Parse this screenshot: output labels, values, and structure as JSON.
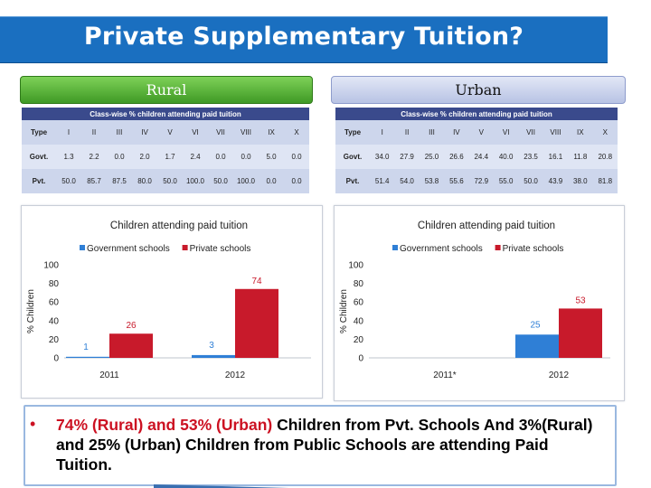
{
  "title": "Private Supplementary Tuition?",
  "colors": {
    "gov": "#2f7fd6",
    "pvt": "#c81a2b",
    "title_bg": "#1a6fc0"
  },
  "rural": {
    "label": "Rural",
    "table": {
      "title": "Class-wise % children attending paid tuition",
      "header": [
        "Type",
        "I",
        "II",
        "III",
        "IV",
        "V",
        "VI",
        "VII",
        "VIII",
        "IX",
        "X"
      ],
      "rows": [
        [
          "Govt.",
          "1.3",
          "2.2",
          "0.0",
          "2.0",
          "1.7",
          "2.4",
          "0.0",
          "0.0",
          "5.0",
          "0.0"
        ],
        [
          "Pvt.",
          "50.0",
          "85.7",
          "87.5",
          "80.0",
          "50.0",
          "100.0",
          "50.0",
          "100.0",
          "0.0",
          "0.0"
        ]
      ]
    }
  },
  "urban": {
    "label": "Urban",
    "table": {
      "title": "Class-wise % children attending paid tuition",
      "header": [
        "Type",
        "I",
        "II",
        "III",
        "IV",
        "V",
        "VI",
        "VII",
        "VIII",
        "IX",
        "X"
      ],
      "rows": [
        [
          "Govt.",
          "34.0",
          "27.9",
          "25.0",
          "26.6",
          "24.4",
          "40.0",
          "23.5",
          "16.1",
          "11.8",
          "20.8"
        ],
        [
          "Pvt.",
          "51.4",
          "54.0",
          "53.8",
          "55.6",
          "72.9",
          "55.0",
          "50.0",
          "43.9",
          "38.0",
          "81.8"
        ]
      ]
    }
  },
  "chart_data": [
    {
      "type": "bar",
      "title": "Children attending paid tuition",
      "ylabel": "% Children",
      "xlabel": "",
      "ylim": [
        0,
        100
      ],
      "yticks": [
        0,
        20,
        40,
        60,
        80,
        100
      ],
      "categories": [
        "2011",
        "2012"
      ],
      "series": [
        {
          "name": "Government schools",
          "values": [
            1,
            3
          ],
          "labels": [
            "1",
            "3"
          ]
        },
        {
          "name": "Private schools",
          "values": [
            26,
            74
          ],
          "labels": [
            "26",
            "74"
          ]
        }
      ],
      "legend": "top-left"
    },
    {
      "type": "bar",
      "title": "Children attending paid tuition",
      "ylabel": "% Children",
      "xlabel": "",
      "ylim": [
        0,
        100
      ],
      "yticks": [
        0,
        20,
        40,
        60,
        80,
        100
      ],
      "categories": [
        "2011*",
        "2012"
      ],
      "series": [
        {
          "name": "Government schools",
          "values": [
            null,
            25
          ],
          "labels": [
            "",
            "25"
          ]
        },
        {
          "name": "Private schools",
          "values": [
            null,
            53
          ],
          "labels": [
            "",
            "53"
          ]
        }
      ],
      "legend": "top-left"
    }
  ],
  "bullet": {
    "marker": "•",
    "part1_red": "74% (Rural) and 53% (Urban)",
    "part2": " Children from Pvt. Schools And 3%(Rural) and 25% (Urban) Children from Public Schools are attending Paid Tuition."
  }
}
